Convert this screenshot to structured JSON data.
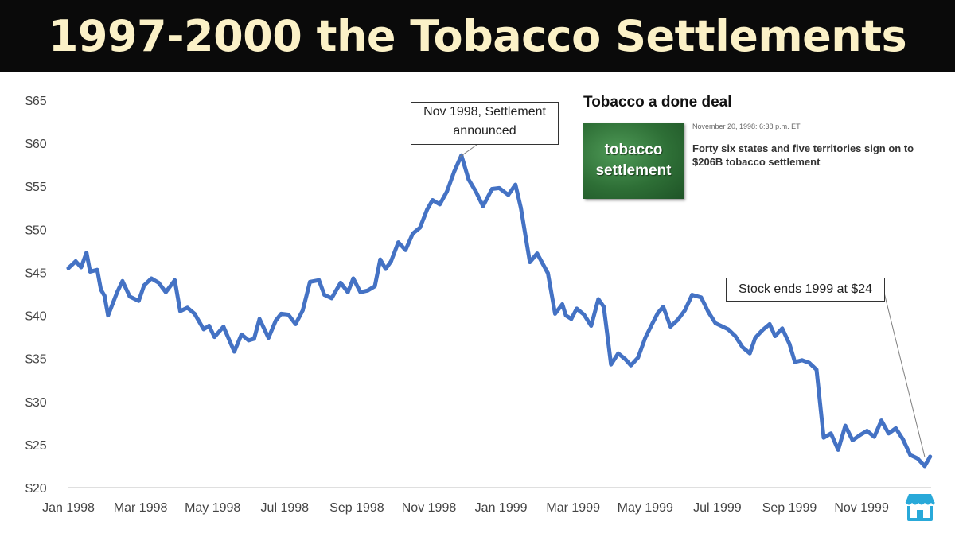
{
  "slide": {
    "title": "1997-2000 the Tobacco Settlements"
  },
  "chart_data": {
    "type": "line",
    "title": "",
    "xlabel": "",
    "ylabel": "",
    "ylim": [
      20,
      65
    ],
    "y_ticks": [
      "$20",
      "$25",
      "$30",
      "$35",
      "$40",
      "$45",
      "$50",
      "$55",
      "$60",
      "$65"
    ],
    "x_ticks": [
      "Jan 1998",
      "Mar 1998",
      "May 1998",
      "Jul 1998",
      "Sep 1998",
      "Nov 1998",
      "Jan 1999",
      "Mar 1999",
      "May 1999",
      "Jul 1999",
      "Sep 1999",
      "Nov 1999"
    ],
    "line_color": "#4472c4",
    "grid": false,
    "series": [
      {
        "x_unit": "month index (0 = Jan 1998)",
        "x": [
          0,
          0.2,
          0.35,
          0.5,
          0.6,
          0.8,
          0.9,
          1.0,
          1.1,
          1.35,
          1.5,
          1.7,
          1.95,
          2.1,
          2.3,
          2.5,
          2.7,
          2.95,
          3.1,
          3.3,
          3.5,
          3.75,
          3.9,
          4.05,
          4.3,
          4.6,
          4.8,
          5.0,
          5.15,
          5.3,
          5.55,
          5.75,
          5.9,
          6.1,
          6.3,
          6.5,
          6.7,
          6.95,
          7.1,
          7.3,
          7.55,
          7.75,
          7.9,
          8.1,
          8.3,
          8.5,
          8.65,
          8.8,
          8.95,
          9.15,
          9.35,
          9.55,
          9.75,
          9.95,
          10.1,
          10.3,
          10.5,
          10.7,
          10.9,
          11.1,
          11.3,
          11.5,
          11.75,
          11.95,
          12.2,
          12.4,
          12.55,
          12.8,
          13.0,
          13.3,
          13.5,
          13.7,
          13.8,
          13.95,
          14.1,
          14.3,
          14.5,
          14.7,
          14.85,
          15.05,
          15.25,
          15.45,
          15.6,
          15.8,
          16.0,
          16.2,
          16.35,
          16.5,
          16.7,
          16.9,
          17.1,
          17.3,
          17.55,
          17.75,
          17.95,
          18.15,
          18.3,
          18.5,
          18.7,
          18.9,
          19.05,
          19.25,
          19.45,
          19.6,
          19.8,
          20.0,
          20.15,
          20.35,
          20.55,
          20.75,
          20.95,
          21.15,
          21.35,
          21.55,
          21.75,
          21.95,
          22.15,
          22.35,
          22.55,
          22.75,
          22.95,
          23.15,
          23.35,
          23.55,
          23.75,
          23.9
        ],
        "y": [
          45.5,
          46.3,
          45.6,
          47.3,
          45.1,
          45.3,
          43.0,
          42.3,
          40.0,
          42.7,
          44.0,
          42.2,
          41.7,
          43.5,
          44.3,
          43.8,
          42.7,
          44.1,
          40.5,
          40.9,
          40.2,
          38.4,
          38.8,
          37.5,
          38.7,
          35.8,
          37.8,
          37.1,
          37.3,
          39.6,
          37.4,
          39.4,
          40.2,
          40.1,
          39.0,
          40.6,
          43.9,
          44.1,
          42.4,
          42.0,
          43.8,
          42.7,
          44.3,
          42.7,
          42.9,
          43.4,
          46.5,
          45.4,
          46.3,
          48.5,
          47.6,
          49.5,
          50.2,
          52.3,
          53.4,
          52.9,
          54.4,
          56.7,
          58.6,
          55.8,
          54.4,
          52.7,
          54.7,
          54.8,
          54.0,
          55.2,
          52.5,
          46.2,
          47.2,
          44.9,
          40.2,
          41.3,
          40.0,
          39.6,
          40.8,
          40.1,
          38.8,
          41.9,
          41.0,
          34.3,
          35.6,
          34.9,
          34.2,
          35.1,
          37.4,
          39.1,
          40.3,
          41.0,
          38.7,
          39.5,
          40.6,
          42.4,
          42.1,
          40.4,
          39.1,
          38.7,
          38.4,
          37.6,
          36.3,
          35.6,
          37.4,
          38.3,
          39.0,
          37.6,
          38.5,
          36.7,
          34.6,
          34.8,
          34.5,
          33.7,
          25.8,
          26.3,
          24.4,
          27.2,
          25.5,
          26.1,
          26.6,
          25.9,
          27.8,
          26.3,
          26.9,
          25.6,
          23.8,
          23.4,
          22.5,
          23.6
        ]
      }
    ],
    "annotations": [
      {
        "text": "Nov 1998, Settlement announced",
        "line1": "Nov 1998, Settlement",
        "line2": "announced",
        "target_x": 10.85,
        "target_y": 58.4
      },
      {
        "text": "Stock ends 1999 at $24",
        "target_x": 23.75,
        "target_y": 23.6
      }
    ]
  },
  "news_clip": {
    "headline": "Tobacco a done deal",
    "thumbnail_line1": "tobacco",
    "thumbnail_line2": "settlement",
    "date": "November 20, 1998: 6:38 p.m. ET",
    "body": "Forty six states and five territories sign on to $206B tobacco settlement"
  },
  "logo": {
    "icon": "storefront-logo-icon",
    "color": "#29a9d9"
  }
}
